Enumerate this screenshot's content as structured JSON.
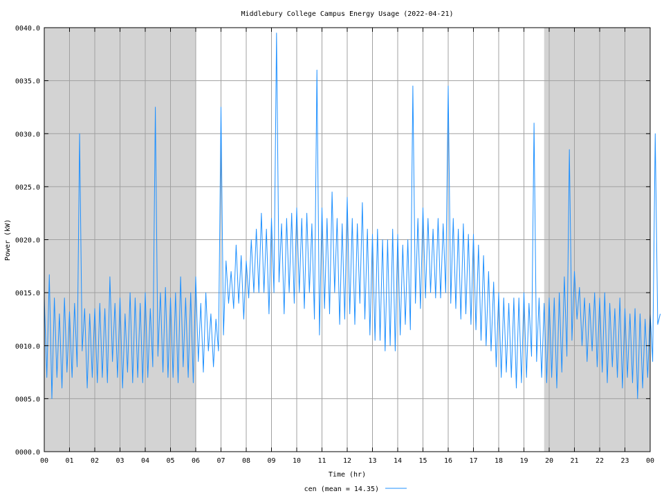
{
  "chart_data": {
    "type": "line",
    "title": "Middlebury College Campus Energy Usage (2022-04-21)",
    "xlabel": "Time (hr)",
    "ylabel": "Power (kW)",
    "xlim": [
      0,
      24
    ],
    "ylim": [
      0,
      40
    ],
    "x_ticks": [
      "00",
      "01",
      "02",
      "03",
      "04",
      "05",
      "06",
      "07",
      "08",
      "09",
      "10",
      "11",
      "12",
      "13",
      "14",
      "15",
      "16",
      "17",
      "18",
      "19",
      "20",
      "21",
      "22",
      "23",
      "00"
    ],
    "y_ticks": [
      "0000.0",
      "0005.0",
      "0010.0",
      "0015.0",
      "0020.0",
      "0025.0",
      "0030.0",
      "0035.0",
      "0040.0"
    ],
    "grid": true,
    "shaded_regions_hours": [
      [
        0,
        6
      ],
      [
        19.8,
        24
      ]
    ],
    "shade_color": "#d3d3d3",
    "series": [
      {
        "name": "cen",
        "legend": "cen (mean = 14.35)",
        "color": "#1e90ff",
        "x_step_hours": 0.1,
        "values": [
          14.5,
          7.0,
          16.7,
          5.0,
          14.5,
          7.0,
          13.0,
          6.0,
          14.5,
          7.5,
          13.2,
          7.0,
          14.0,
          8.0,
          30.0,
          9.5,
          13.5,
          6.0,
          13.0,
          7.0,
          13.5,
          6.5,
          14.0,
          7.0,
          13.5,
          6.5,
          16.5,
          8.5,
          14.0,
          7.0,
          14.5,
          6.0,
          13.0,
          7.5,
          15.0,
          6.5,
          14.5,
          7.0,
          14.0,
          6.5,
          15.0,
          7.0,
          13.5,
          8.0,
          32.5,
          9.0,
          15.0,
          7.5,
          15.5,
          7.0,
          14.5,
          7.0,
          15.0,
          6.5,
          16.5,
          8.0,
          14.5,
          7.0,
          15.0,
          6.5,
          16.5,
          8.5,
          14.0,
          7.5,
          15.0,
          9.5,
          13.0,
          8.0,
          12.5,
          9.5,
          32.5,
          11.0,
          18.0,
          14.0,
          17.0,
          13.5,
          19.5,
          14.0,
          18.5,
          12.5,
          18.0,
          14.5,
          20.0,
          15.0,
          21.0,
          15.0,
          22.5,
          15.0,
          21.0,
          13.0,
          22.0,
          15.0,
          39.5,
          16.0,
          21.5,
          13.0,
          22.0,
          15.0,
          22.5,
          14.0,
          23.0,
          15.0,
          22.0,
          13.5,
          22.5,
          15.0,
          21.5,
          12.5,
          36.0,
          11.0,
          23.0,
          13.5,
          22.0,
          13.0,
          24.5,
          15.0,
          22.0,
          12.0,
          21.5,
          12.5,
          24.0,
          13.0,
          22.0,
          12.0,
          21.5,
          14.0,
          23.5,
          12.5,
          21.0,
          11.0,
          20.5,
          10.5,
          21.0,
          10.5,
          20.0,
          9.5,
          20.0,
          10.0,
          21.0,
          9.5,
          20.5,
          11.0,
          19.5,
          12.0,
          20.0,
          11.5,
          34.5,
          14.0,
          22.0,
          13.5,
          23.0,
          14.5,
          22.0,
          15.0,
          21.0,
          14.5,
          22.0,
          14.5,
          21.5,
          15.0,
          34.5,
          14.0,
          22.0,
          13.5,
          21.0,
          12.5,
          21.5,
          13.0,
          20.5,
          12.0,
          20.5,
          11.5,
          19.5,
          10.5,
          18.5,
          10.0,
          17.0,
          9.5,
          16.0,
          8.0,
          15.0,
          7.0,
          14.5,
          7.5,
          14.0,
          7.0,
          14.5,
          6.0,
          14.5,
          6.5,
          15.0,
          7.0,
          14.0,
          9.0,
          31.0,
          8.5,
          14.5,
          7.0,
          14.0,
          6.5,
          14.5,
          7.0,
          14.5,
          6.0,
          15.0,
          7.5,
          16.5,
          9.0,
          28.5,
          10.5,
          17.0,
          12.5,
          15.5,
          10.0,
          14.5,
          8.5,
          14.0,
          9.5,
          15.0,
          8.0,
          14.5,
          7.5,
          15.0,
          6.5,
          14.0,
          8.0,
          13.5,
          7.0,
          14.5,
          6.0,
          13.5,
          7.0,
          13.0,
          6.5,
          13.5,
          5.0,
          13.0,
          6.0,
          12.5,
          7.0,
          13.0,
          8.5,
          30.0,
          12.0,
          13.0
        ]
      }
    ]
  }
}
